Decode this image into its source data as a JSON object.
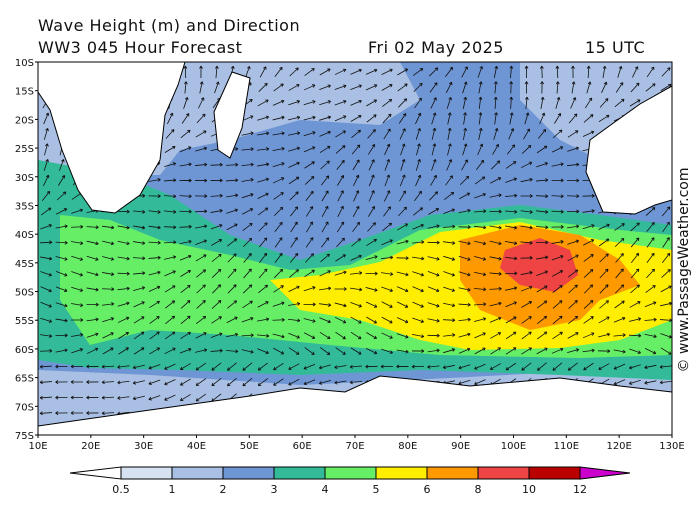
{
  "header": {
    "title": "Wave Height (m) and Direction",
    "subtitle": "WW3 045 Hour Forecast",
    "date": "Fri 02 May 2025",
    "time": "15 UTC"
  },
  "axes": {
    "lat_labels": [
      "10S",
      "15S",
      "20S",
      "25S",
      "30S",
      "35S",
      "40S",
      "45S",
      "50S",
      "55S",
      "60S",
      "65S",
      "70S",
      "75S"
    ],
    "lon_labels": [
      "10E",
      "20E",
      "30E",
      "40E",
      "50E",
      "60E",
      "70E",
      "80E",
      "90E",
      "100E",
      "110E",
      "120E",
      "130E"
    ]
  },
  "legend": {
    "labels": [
      0.5,
      1,
      2,
      3,
      4,
      5,
      6,
      8,
      10,
      12
    ]
  },
  "watermark": "© www.PassageWeather.com"
}
